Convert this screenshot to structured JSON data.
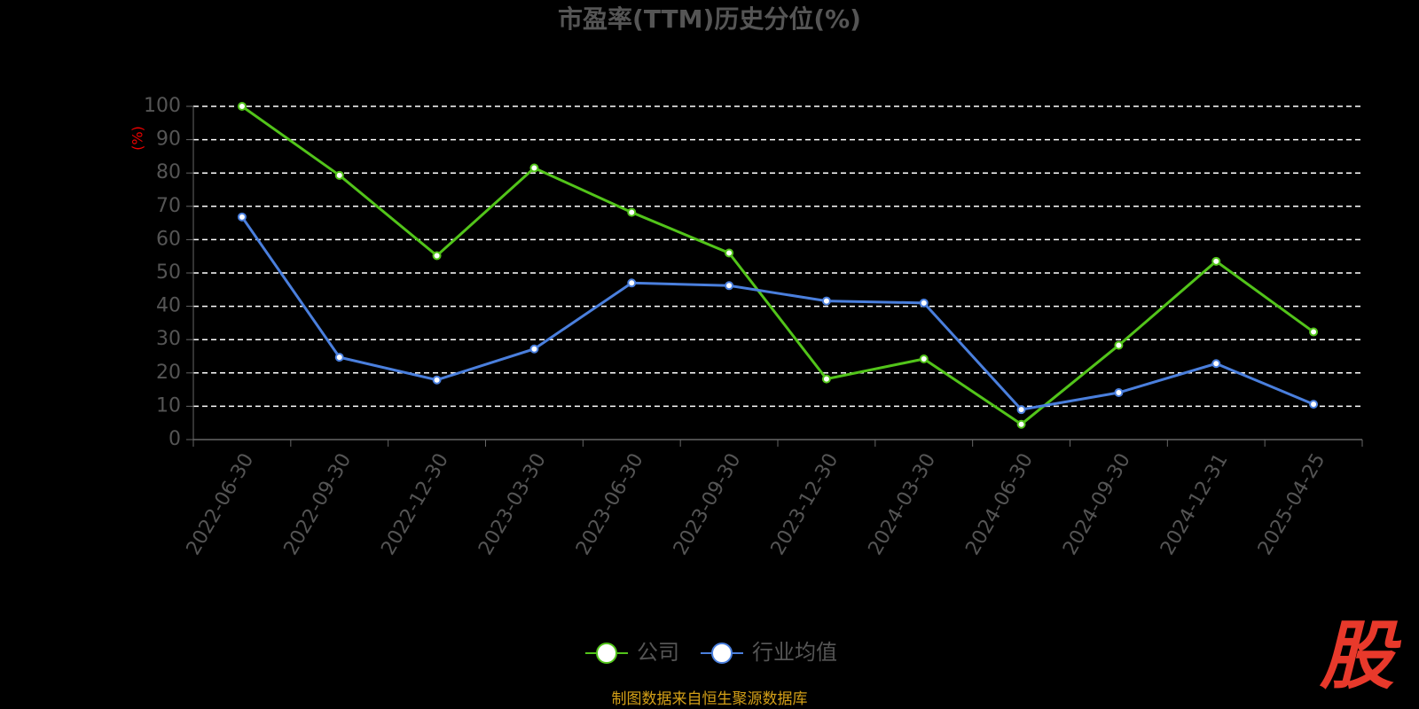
{
  "chart_data": {
    "type": "line",
    "title": "市盈率(TTM)历史分位(%)",
    "y_label": "(%)",
    "categories": [
      "2022-06-30",
      "2022-09-30",
      "2022-12-30",
      "2023-03-30",
      "2023-06-30",
      "2023-09-30",
      "2023-12-30",
      "2024-03-30",
      "2024-06-30",
      "2024-09-30",
      "2024-12-31",
      "2025-04-25"
    ],
    "series": [
      {
        "name": "公司",
        "color": "#52c41a",
        "values": [
          100,
          79.3,
          55.2,
          81.5,
          68.2,
          56,
          18.2,
          24.2,
          4.6,
          28.3,
          53.5,
          32.3
        ]
      },
      {
        "name": "行业均值",
        "color": "#4a7fdd",
        "values": [
          66.8,
          24.7,
          17.9,
          27.2,
          47,
          46.2,
          41.6,
          41,
          9,
          14.1,
          22.8,
          10.6
        ]
      }
    ],
    "ylim": [
      0,
      100
    ],
    "yticks": [
      0,
      10,
      20,
      30,
      40,
      50,
      60,
      70,
      80,
      90,
      100
    ],
    "grid": true,
    "legend": "bottom",
    "source": "制图数据来自恒生聚源数据库",
    "logo": "股"
  }
}
